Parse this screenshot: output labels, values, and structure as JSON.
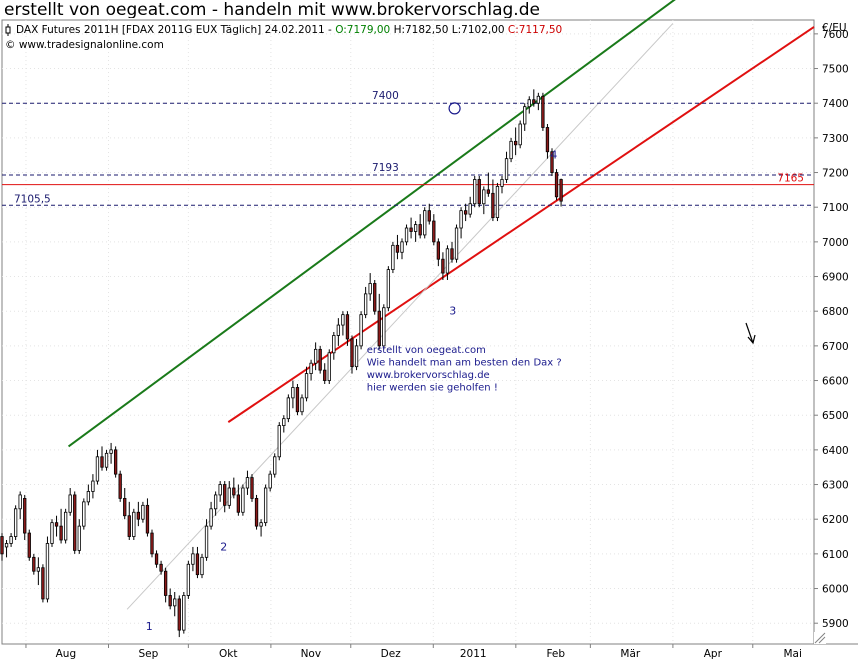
{
  "banner": {
    "text": "erstellt von oegeat.com - handeln mit www.brokervorschlag.de"
  },
  "header": {
    "instrument": "DAX Futures 2011H [FDAX 2011G EUX  Täglich] 24.02.2011 - ",
    "open": "O:7179,00",
    "high": " H:7182,50",
    "low": " L:7102,00",
    "close": " C:7117,50",
    "copyright": "© www.tradesignalonline.com"
  },
  "colors": {
    "open_text": "#008000",
    "close_text": "#cc0000",
    "up_candle": "#ffffff",
    "down_candle": "#8b1a1a",
    "trend_upper": "#1a7a1a",
    "trend_lower": "#e01010",
    "level_line": "#e01010",
    "dashed_line": "#1a1a6e",
    "annotation": "#1a1a8c",
    "guide_line": "#c8c8c8"
  },
  "chart_data": {
    "type": "candlestick",
    "currency_label": "€/EU",
    "ylim": [
      5840,
      7640
    ],
    "y_ticks": [
      5900,
      6000,
      6100,
      6200,
      6300,
      6400,
      6500,
      6600,
      6700,
      6800,
      6900,
      7000,
      7100,
      7200,
      7300,
      7400,
      7500,
      7600
    ],
    "x_labels": [
      "Aug",
      "Sep",
      "Okt",
      "Nov",
      "Dez",
      "2011",
      "Feb",
      "Mär",
      "Apr",
      "Mai"
    ],
    "x_label_days": [
      24,
      55,
      85,
      116,
      146,
      177,
      208,
      236,
      267,
      297
    ],
    "day_range": [
      0,
      305
    ],
    "horizontal_levels": [
      {
        "value": 7400,
        "label": "7400",
        "style": "dashed"
      },
      {
        "value": 7193,
        "label": "7193",
        "style": "dashed"
      },
      {
        "value": 7105.5,
        "label": "7105,5",
        "style": "dashed"
      },
      {
        "value": 7165,
        "label": "7165",
        "style": "solid"
      }
    ],
    "trendlines": [
      {
        "name": "upper",
        "from": [
          25,
          6410
        ],
        "to": [
          305,
          7995
        ]
      },
      {
        "name": "lower",
        "from": [
          85,
          6480
        ],
        "to": [
          305,
          7620
        ]
      },
      {
        "name": "guide",
        "from": [
          47,
          5940
        ],
        "to": [
          252,
          7630
        ]
      }
    ],
    "wave_labels": [
      {
        "label": "1",
        "day": 54,
        "value": 5880
      },
      {
        "label": "2",
        "day": 82,
        "value": 6110
      },
      {
        "label": "3",
        "day": 168,
        "value": 6790
      },
      {
        "label": "4",
        "day": 206,
        "value": 7240
      }
    ],
    "note_lines": [
      "erstellt von oegeat.com",
      "Wie handelt man am besten den Dax ?",
      "www.brokervorschlag.de",
      "hier werden sie geholfen !"
    ],
    "note_anchor": {
      "day": 137,
      "value": 6680
    },
    "circle_marker": {
      "day": 170,
      "value": 7385
    },
    "series": [
      {
        "values": [
          [
            0,
            6150,
            6160,
            6080,
            6100
          ],
          [
            1,
            6120,
            6140,
            6090,
            6130
          ],
          [
            2,
            6130,
            6160,
            6120,
            6150
          ],
          [
            3,
            6150,
            6240,
            6140,
            6230
          ],
          [
            4,
            6230,
            6280,
            6200,
            6270
          ],
          [
            5,
            6260,
            6270,
            6140,
            6160
          ],
          [
            6,
            6160,
            6170,
            6080,
            6090
          ],
          [
            7,
            6090,
            6100,
            6040,
            6050
          ],
          [
            8,
            6050,
            6090,
            6010,
            6060
          ],
          [
            9,
            6060,
            6070,
            5960,
            5970
          ],
          [
            10,
            5970,
            6150,
            5960,
            6130
          ],
          [
            11,
            6130,
            6200,
            6120,
            6190
          ],
          [
            12,
            6190,
            6210,
            6150,
            6180
          ],
          [
            13,
            6180,
            6230,
            6130,
            6140
          ],
          [
            14,
            6140,
            6230,
            6130,
            6220
          ],
          [
            15,
            6220,
            6290,
            6210,
            6270
          ],
          [
            16,
            6270,
            6280,
            6100,
            6110
          ],
          [
            17,
            6110,
            6200,
            6100,
            6180
          ],
          [
            18,
            6180,
            6260,
            6170,
            6250
          ],
          [
            19,
            6250,
            6300,
            6240,
            6280
          ],
          [
            20,
            6280,
            6330,
            6260,
            6310
          ],
          [
            21,
            6310,
            6400,
            6300,
            6380
          ],
          [
            22,
            6380,
            6410,
            6340,
            6350
          ],
          [
            23,
            6350,
            6400,
            6340,
            6390
          ],
          [
            24,
            6390,
            6420,
            6360,
            6400
          ],
          [
            25,
            6400,
            6410,
            6320,
            6330
          ],
          [
            26,
            6330,
            6340,
            6250,
            6260
          ],
          [
            27,
            6260,
            6290,
            6200,
            6210
          ],
          [
            28,
            6210,
            6250,
            6140,
            6150
          ],
          [
            29,
            6150,
            6230,
            6140,
            6220
          ],
          [
            30,
            6220,
            6250,
            6180,
            6200
          ],
          [
            31,
            6200,
            6250,
            6190,
            6240
          ],
          [
            32,
            6240,
            6260,
            6150,
            6160
          ],
          [
            33,
            6160,
            6170,
            6090,
            6100
          ],
          [
            34,
            6100,
            6110,
            6060,
            6070
          ],
          [
            35,
            6070,
            6080,
            6040,
            6050
          ],
          [
            36,
            6050,
            6060,
            5960,
            5980
          ],
          [
            37,
            5980,
            6000,
            5940,
            5950
          ],
          [
            38,
            5950,
            5990,
            5920,
            5970
          ],
          [
            39,
            5970,
            5980,
            5860,
            5880
          ],
          [
            40,
            5880,
            5990,
            5870,
            5980
          ],
          [
            41,
            5980,
            6080,
            5970,
            6070
          ],
          [
            42,
            6070,
            6120,
            6050,
            6100
          ],
          [
            43,
            6100,
            6120,
            6030,
            6040
          ],
          [
            44,
            6040,
            6100,
            6030,
            6090
          ],
          [
            45,
            6090,
            6200,
            6080,
            6180
          ],
          [
            46,
            6180,
            6250,
            6170,
            6230
          ],
          [
            47,
            6230,
            6280,
            6210,
            6270
          ],
          [
            48,
            6270,
            6310,
            6250,
            6300
          ],
          [
            49,
            6300,
            6310,
            6220,
            6240
          ],
          [
            50,
            6240,
            6310,
            6230,
            6290
          ],
          [
            51,
            6290,
            6320,
            6260,
            6270
          ],
          [
            52,
            6270,
            6300,
            6210,
            6220
          ],
          [
            53,
            6220,
            6300,
            6210,
            6290
          ],
          [
            54,
            6290,
            6340,
            6270,
            6320
          ],
          [
            55,
            6320,
            6330,
            6250,
            6260
          ],
          [
            56,
            6260,
            6270,
            6170,
            6180
          ],
          [
            57,
            6180,
            6200,
            6150,
            6190
          ],
          [
            58,
            6190,
            6300,
            6180,
            6290
          ],
          [
            59,
            6290,
            6340,
            6280,
            6330
          ],
          [
            60,
            6330,
            6390,
            6320,
            6380
          ],
          [
            61,
            6380,
            6480,
            6370,
            6470
          ],
          [
            62,
            6470,
            6500,
            6450,
            6490
          ],
          [
            63,
            6490,
            6560,
            6480,
            6550
          ],
          [
            64,
            6550,
            6600,
            6520,
            6580
          ],
          [
            65,
            6580,
            6590,
            6500,
            6510
          ],
          [
            66,
            6510,
            6560,
            6500,
            6550
          ],
          [
            67,
            6550,
            6640,
            6540,
            6620
          ],
          [
            68,
            6620,
            6660,
            6600,
            6650
          ],
          [
            69,
            6650,
            6710,
            6630,
            6690
          ],
          [
            70,
            6690,
            6700,
            6620,
            6630
          ],
          [
            71,
            6630,
            6650,
            6590,
            6600
          ],
          [
            72,
            6600,
            6690,
            6590,
            6680
          ],
          [
            73,
            6680,
            6740,
            6660,
            6730
          ],
          [
            74,
            6730,
            6780,
            6700,
            6760
          ],
          [
            75,
            6760,
            6800,
            6730,
            6790
          ],
          [
            76,
            6790,
            6800,
            6700,
            6720
          ],
          [
            77,
            6720,
            6730,
            6620,
            6640
          ],
          [
            78,
            6640,
            6720,
            6630,
            6700
          ],
          [
            79,
            6700,
            6800,
            6690,
            6790
          ],
          [
            80,
            6790,
            6870,
            6780,
            6850
          ],
          [
            81,
            6850,
            6910,
            6830,
            6880
          ],
          [
            82,
            6880,
            6890,
            6790,
            6800
          ],
          [
            83,
            6800,
            6850,
            6690,
            6700
          ],
          [
            84,
            6700,
            6820,
            6690,
            6810
          ],
          [
            85,
            6810,
            6930,
            6800,
            6920
          ],
          [
            86,
            6920,
            7000,
            6910,
            6990
          ],
          [
            87,
            6990,
            7020,
            6950,
            6970
          ],
          [
            88,
            6970,
            7010,
            6950,
            7000
          ],
          [
            89,
            7000,
            7050,
            6990,
            7040
          ],
          [
            90,
            7040,
            7070,
            7010,
            7030
          ],
          [
            91,
            7030,
            7060,
            7000,
            7050
          ],
          [
            92,
            7050,
            7080,
            7010,
            7020
          ],
          [
            93,
            7020,
            7100,
            7010,
            7090
          ],
          [
            94,
            7090,
            7110,
            7050,
            7060
          ],
          [
            95,
            7060,
            7080,
            6990,
            7000
          ],
          [
            96,
            7000,
            7010,
            6930,
            6950
          ],
          [
            97,
            6950,
            6970,
            6890,
            6910
          ],
          [
            98,
            6910,
            6990,
            6890,
            6980
          ],
          [
            99,
            6980,
            7000,
            6940,
            6950
          ],
          [
            100,
            6950,
            7050,
            6940,
            7040
          ],
          [
            101,
            7040,
            7100,
            7010,
            7090
          ],
          [
            102,
            7090,
            7110,
            7060,
            7080
          ],
          [
            103,
            7080,
            7130,
            7070,
            7110
          ],
          [
            104,
            7110,
            7190,
            7100,
            7180
          ],
          [
            105,
            7180,
            7190,
            7100,
            7110
          ],
          [
            106,
            7110,
            7160,
            7080,
            7150
          ],
          [
            107,
            7150,
            7200,
            7130,
            7140
          ],
          [
            108,
            7140,
            7180,
            7060,
            7070
          ],
          [
            109,
            7070,
            7170,
            7060,
            7160
          ],
          [
            110,
            7160,
            7190,
            7140,
            7180
          ],
          [
            111,
            7180,
            7260,
            7170,
            7240
          ],
          [
            112,
            7240,
            7300,
            7230,
            7290
          ],
          [
            113,
            7290,
            7330,
            7250,
            7280
          ],
          [
            114,
            7280,
            7350,
            7270,
            7340
          ],
          [
            115,
            7340,
            7400,
            7320,
            7390
          ],
          [
            116,
            7390,
            7420,
            7370,
            7410
          ],
          [
            117,
            7410,
            7440,
            7390,
            7400
          ],
          [
            118,
            7400,
            7430,
            7380,
            7420
          ],
          [
            119,
            7420,
            7430,
            7320,
            7330
          ],
          [
            120,
            7330,
            7340,
            7240,
            7260
          ],
          [
            121,
            7260,
            7270,
            7190,
            7200
          ],
          [
            122,
            7200,
            7210,
            7120,
            7130
          ],
          [
            123,
            7180,
            7182.5,
            7102,
            7117.5
          ]
        ]
      }
    ],
    "candle_span": [
      0,
      210
    ]
  }
}
